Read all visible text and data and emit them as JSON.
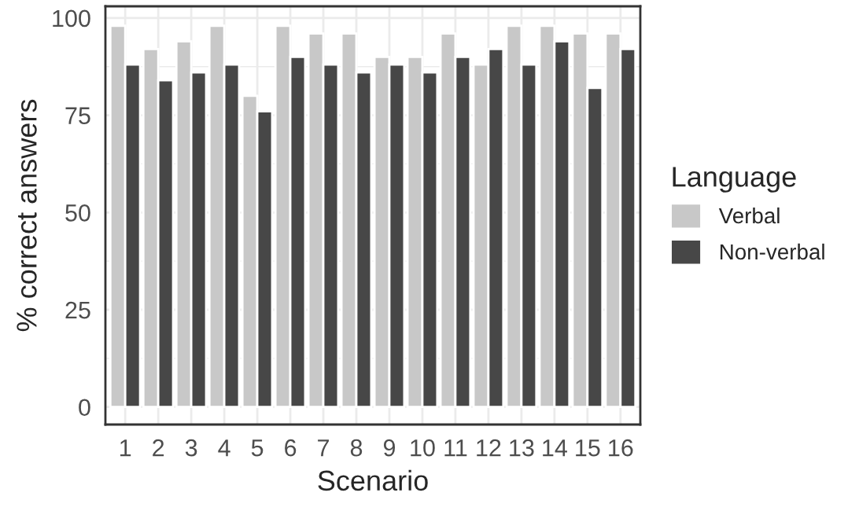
{
  "chart_data": {
    "type": "bar",
    "xlabel": "Scenario",
    "ylabel": "% correct answers",
    "legend_title": "Language",
    "categories": [
      "1",
      "2",
      "3",
      "4",
      "5",
      "6",
      "7",
      "8",
      "9",
      "10",
      "11",
      "12",
      "13",
      "14",
      "15",
      "16"
    ],
    "series": [
      {
        "name": "Verbal",
        "color": "#c8c8c8",
        "values": [
          98,
          92,
          94,
          98,
          80,
          98,
          96,
          96,
          90,
          90,
          96,
          88,
          98,
          98,
          96,
          96
        ]
      },
      {
        "name": "Non-verbal",
        "color": "#474747",
        "values": [
          88,
          84,
          86,
          88,
          76,
          90,
          88,
          86,
          88,
          86,
          90,
          92,
          88,
          94,
          82,
          92
        ]
      }
    ],
    "ylim": [
      -4.5,
      103
    ],
    "yticks": [
      0,
      25,
      50,
      75,
      100
    ],
    "grid": true,
    "legend": "right"
  }
}
